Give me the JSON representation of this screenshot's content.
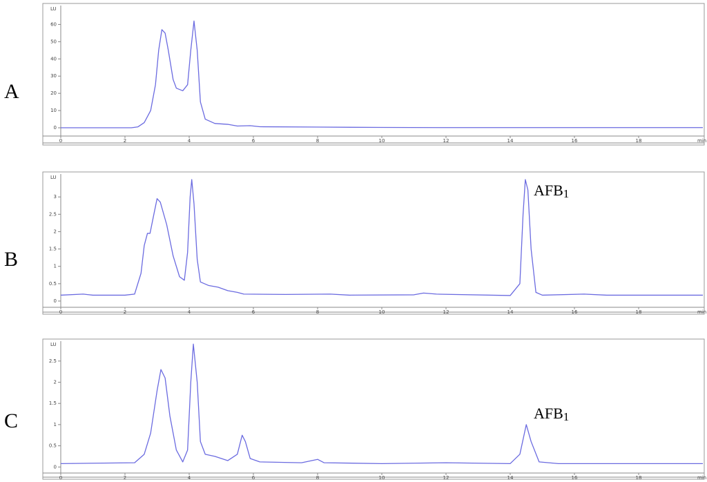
{
  "chart_data": [
    {
      "type": "line",
      "label": "A",
      "ylabel": "LU",
      "xlabel": "min",
      "color": "#6a6ae0",
      "xlim": [
        0,
        20
      ],
      "ylim": [
        -4,
        71
      ],
      "xticks": [
        0,
        2,
        4,
        6,
        8,
        10,
        12,
        14,
        16,
        18
      ],
      "yticks": [
        0,
        10,
        20,
        30,
        40,
        50,
        60
      ],
      "x": [
        0,
        2.2,
        2.4,
        2.6,
        2.8,
        2.95,
        3.05,
        3.15,
        3.25,
        3.35,
        3.5,
        3.6,
        3.8,
        3.95,
        4.05,
        4.15,
        4.25,
        4.35,
        4.5,
        4.8,
        5.2,
        5.5,
        5.9,
        6.2,
        8,
        10,
        12,
        14,
        20
      ],
      "values": [
        0,
        0,
        0.5,
        3,
        10,
        25,
        45,
        57,
        55,
        45,
        28,
        23,
        21.5,
        25,
        45,
        62,
        45,
        15,
        5,
        2.5,
        2,
        1,
        1.2,
        0.6,
        0.4,
        0.2,
        0.1,
        0.1,
        0.1
      ]
    },
    {
      "type": "line",
      "label": "B",
      "ylabel": "LU",
      "xlabel": "min",
      "color": "#6a6ae0",
      "xlim": [
        0,
        20
      ],
      "ylim": [
        -0.14,
        3.66
      ],
      "xticks": [
        0,
        2,
        4,
        6,
        8,
        10,
        12,
        14,
        16,
        18
      ],
      "yticks": [
        0,
        0.5,
        1,
        1.5,
        2,
        2.5,
        3
      ],
      "annotation": {
        "text": "AFB",
        "subscript": "1"
      },
      "x": [
        0,
        0.7,
        1.0,
        2.0,
        2.3,
        2.5,
        2.6,
        2.7,
        2.78,
        2.9,
        3.0,
        3.1,
        3.3,
        3.5,
        3.7,
        3.85,
        3.95,
        4.03,
        4.08,
        4.15,
        4.25,
        4.35,
        4.6,
        4.9,
        5.2,
        5.5,
        5.7,
        7,
        8.4,
        9,
        11,
        11.3,
        11.7,
        14,
        14.3,
        14.4,
        14.47,
        14.55,
        14.65,
        14.8,
        15,
        16.3,
        17,
        20
      ],
      "values": [
        0.17,
        0.2,
        0.17,
        0.17,
        0.2,
        0.8,
        1.6,
        1.95,
        1.95,
        2.5,
        2.95,
        2.85,
        2.2,
        1.3,
        0.7,
        0.6,
        1.4,
        3.0,
        3.5,
        2.8,
        1.2,
        0.55,
        0.45,
        0.4,
        0.3,
        0.25,
        0.2,
        0.19,
        0.2,
        0.17,
        0.18,
        0.23,
        0.2,
        0.16,
        0.5,
        2.5,
        3.5,
        3.2,
        1.5,
        0.25,
        0.17,
        0.2,
        0.17,
        0.17
      ]
    },
    {
      "type": "line",
      "label": "C",
      "ylabel": "LU",
      "xlabel": "min",
      "color": "#6a6ae0",
      "xlim": [
        0,
        20
      ],
      "ylim": [
        -0.11,
        2.97
      ],
      "xticks": [
        0,
        2,
        4,
        6,
        8,
        10,
        12,
        14,
        16,
        18
      ],
      "yticks": [
        0,
        0.5,
        1,
        1.5,
        2,
        2.5
      ],
      "annotation": {
        "text": "AFB",
        "subscript": "1"
      },
      "x": [
        0,
        2.3,
        2.6,
        2.8,
        3.0,
        3.12,
        3.25,
        3.4,
        3.6,
        3.8,
        3.95,
        4.05,
        4.13,
        4.25,
        4.35,
        4.5,
        4.8,
        5.2,
        5.5,
        5.65,
        5.75,
        5.9,
        6.2,
        7.5,
        8.0,
        8.2,
        10,
        12,
        14,
        14.3,
        14.5,
        14.65,
        14.9,
        15.5,
        20
      ],
      "values": [
        0.08,
        0.1,
        0.3,
        0.8,
        1.8,
        2.3,
        2.1,
        1.2,
        0.4,
        0.12,
        0.4,
        2.0,
        2.9,
        2.0,
        0.6,
        0.3,
        0.25,
        0.15,
        0.3,
        0.75,
        0.6,
        0.2,
        0.12,
        0.1,
        0.18,
        0.1,
        0.08,
        0.1,
        0.08,
        0.3,
        1.0,
        0.6,
        0.12,
        0.08,
        0.08
      ]
    }
  ]
}
